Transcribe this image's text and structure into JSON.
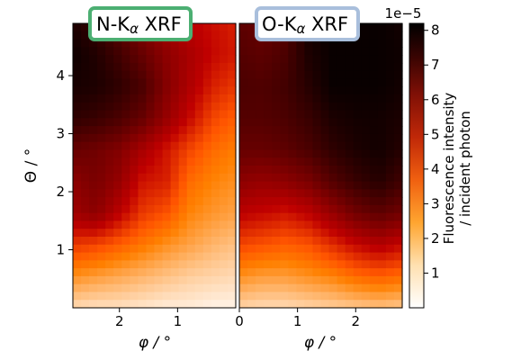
{
  "chart_data": [
    {
      "type": "heatmap",
      "title": "N-Kα XRF",
      "title_box_color": "#4caf72",
      "xlabel": "φ / °",
      "ylabel": "Θ / °",
      "xlim": [
        2.8,
        0.0
      ],
      "ylim": [
        0.0,
        4.9
      ],
      "xticks": [
        2,
        1
      ],
      "yticks": [
        1,
        2,
        3,
        4
      ],
      "grid": false,
      "description_values": "intensity x1e-5 sampled on grid (rows: Θ from 4.75 down to 0.25, cols: φ from 2.6 down to 0.2)",
      "z": [
        [
          7.6,
          7.0,
          6.2,
          5.4,
          4.8,
          4.2,
          3.9,
          3.6
        ],
        [
          7.9,
          7.5,
          6.8,
          6.0,
          5.2,
          4.6,
          4.0,
          3.7
        ],
        [
          7.7,
          7.6,
          7.2,
          6.6,
          5.4,
          4.5,
          3.6,
          3.2
        ],
        [
          7.2,
          7.0,
          6.6,
          6.0,
          5.0,
          4.0,
          3.0,
          2.6
        ],
        [
          6.0,
          5.8,
          5.4,
          4.6,
          3.8,
          3.0,
          2.4,
          2.1
        ],
        [
          5.2,
          5.6,
          5.0,
          3.8,
          3.6,
          2.4,
          2.0,
          1.8
        ],
        [
          4.8,
          5.2,
          4.2,
          3.2,
          2.8,
          2.0,
          1.7,
          1.5
        ],
        [
          3.2,
          3.0,
          2.6,
          2.2,
          1.8,
          1.5,
          1.2,
          1.0
        ],
        [
          1.8,
          1.6,
          1.4,
          1.2,
          1.0,
          0.8,
          0.7,
          0.6
        ],
        [
          0.6,
          0.5,
          0.5,
          0.4,
          0.3,
          0.3,
          0.2,
          0.2
        ]
      ]
    },
    {
      "type": "heatmap",
      "title": "O-Kα XRF",
      "title_box_color": "#a9bfdc",
      "xlabel": "φ / °",
      "ylabel": "",
      "xlim": [
        0.0,
        2.8
      ],
      "ylim": [
        0.0,
        4.9
      ],
      "xticks": [
        0,
        1,
        2
      ],
      "yticks": [],
      "grid": false,
      "z": [
        [
          6.2,
          6.0,
          6.4,
          7.8,
          8.0,
          8.0,
          8.0,
          7.8
        ],
        [
          6.4,
          6.2,
          6.6,
          7.6,
          8.0,
          8.0,
          8.0,
          7.9
        ],
        [
          6.6,
          6.5,
          6.8,
          7.4,
          8.0,
          8.0,
          8.0,
          7.8
        ],
        [
          6.4,
          6.4,
          6.6,
          7.0,
          7.6,
          7.8,
          7.8,
          7.6
        ],
        [
          6.0,
          6.0,
          6.2,
          6.6,
          7.2,
          7.6,
          7.8,
          7.4
        ],
        [
          5.2,
          5.0,
          5.2,
          5.6,
          6.4,
          7.0,
          7.4,
          6.8
        ],
        [
          4.2,
          4.0,
          3.8,
          4.2,
          5.0,
          5.8,
          6.2,
          5.8
        ],
        [
          3.0,
          2.8,
          2.6,
          2.8,
          3.4,
          4.0,
          4.4,
          4.0
        ],
        [
          1.8,
          1.6,
          1.6,
          1.8,
          2.0,
          2.4,
          2.6,
          2.4
        ],
        [
          0.7,
          0.6,
          0.6,
          0.7,
          0.8,
          0.9,
          1.0,
          0.9
        ]
      ]
    }
  ],
  "colorbar": {
    "label_line1": "Fluorescence intensity",
    "label_line2": "/ incident photon",
    "exponent_label": "1e−5",
    "min": 0.0,
    "max": 8.2,
    "ticks": [
      1,
      2,
      3,
      4,
      5,
      6,
      7,
      8
    ],
    "colormap": "gist_heat_r"
  },
  "labels": {
    "theta_axis": "Θ / °",
    "phi_axis_left": "φ / °",
    "phi_axis_right": "φ / °",
    "title_left": "N-K",
    "title_left_sub": "α",
    "title_left_rest": " XRF",
    "title_right": "O-K",
    "title_right_sub": "α",
    "title_right_rest": " XRF"
  }
}
